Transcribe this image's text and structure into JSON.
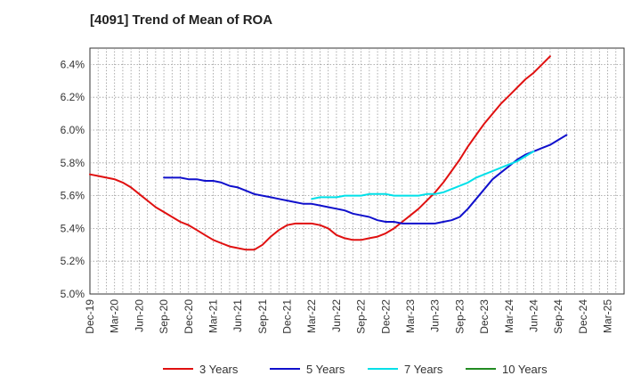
{
  "chart_data": {
    "type": "line",
    "title": "[4091]  Trend of Mean of ROA",
    "xlabel": "",
    "ylabel": "",
    "grid": true,
    "legend_position": "bottom",
    "ylim": [
      5.0,
      6.5
    ],
    "yticks": [
      5.0,
      5.2,
      5.4,
      5.6,
      5.8,
      6.0,
      6.2,
      6.4
    ],
    "ytick_labels": [
      "5.0%",
      "5.2%",
      "5.4%",
      "5.6%",
      "5.8%",
      "6.0%",
      "6.2%",
      "6.4%"
    ],
    "x_tick_labels": [
      "Dec-19",
      "Mar-20",
      "Jun-20",
      "Sep-20",
      "Dec-20",
      "Mar-21",
      "Jun-21",
      "Sep-21",
      "Dec-21",
      "Mar-22",
      "Jun-22",
      "Sep-22",
      "Dec-22",
      "Mar-23",
      "Jun-23",
      "Sep-23",
      "Dec-23",
      "Mar-24",
      "Jun-24",
      "Sep-24",
      "Dec-24",
      "Mar-25"
    ],
    "x_months": [
      0,
      1,
      2,
      3,
      4,
      5,
      6,
      7,
      8,
      9,
      10,
      11,
      12,
      13,
      14,
      15,
      16,
      17,
      18,
      19,
      20,
      21,
      22,
      23,
      24,
      25,
      26,
      27,
      28,
      29,
      30,
      31,
      32,
      33,
      34,
      35,
      36,
      37,
      38,
      39,
      40,
      41,
      42,
      43,
      44,
      45,
      46,
      47,
      48,
      49,
      50,
      51,
      52,
      53,
      54,
      55,
      56,
      57,
      58,
      59,
      60,
      61,
      62,
      63,
      64,
      65
    ],
    "series": [
      {
        "name": "3 Years",
        "color": "#e01010",
        "start_month": 0,
        "values": [
          5.73,
          5.72,
          5.71,
          5.7,
          5.68,
          5.65,
          5.61,
          5.57,
          5.53,
          5.5,
          5.47,
          5.44,
          5.42,
          5.39,
          5.36,
          5.33,
          5.31,
          5.29,
          5.28,
          5.27,
          5.27,
          5.3,
          5.35,
          5.39,
          5.42,
          5.43,
          5.43,
          5.43,
          5.42,
          5.4,
          5.36,
          5.34,
          5.33,
          5.33,
          5.34,
          5.35,
          5.37,
          5.4,
          5.44,
          5.48,
          5.52,
          5.57,
          5.62,
          5.68,
          5.75,
          5.82,
          5.9,
          5.97,
          6.04,
          6.1,
          6.16,
          6.21,
          6.26,
          6.31,
          6.35,
          6.4,
          6.45
        ]
      },
      {
        "name": "5 Years",
        "color": "#1010cc",
        "start_month": 9,
        "values": [
          5.71,
          5.71,
          5.71,
          5.7,
          5.7,
          5.69,
          5.69,
          5.68,
          5.66,
          5.65,
          5.63,
          5.61,
          5.6,
          5.59,
          5.58,
          5.57,
          5.56,
          5.55,
          5.55,
          5.54,
          5.53,
          5.52,
          5.51,
          5.49,
          5.48,
          5.47,
          5.45,
          5.44,
          5.44,
          5.43,
          5.43,
          5.43,
          5.43,
          5.43,
          5.44,
          5.45,
          5.47,
          5.52,
          5.58,
          5.64,
          5.7,
          5.74,
          5.78,
          5.82,
          5.85,
          5.87,
          5.89,
          5.91,
          5.94,
          5.97
        ]
      },
      {
        "name": "7 Years",
        "color": "#00e0e8",
        "start_month": 27,
        "values": [
          5.58,
          5.59,
          5.59,
          5.59,
          5.6,
          5.6,
          5.6,
          5.61,
          5.61,
          5.61,
          5.6,
          5.6,
          5.6,
          5.6,
          5.61,
          5.61,
          5.62,
          5.64,
          5.66,
          5.68,
          5.71,
          5.73,
          5.75,
          5.77,
          5.79,
          5.81,
          5.84,
          5.87
        ]
      },
      {
        "name": "10 Years",
        "color": "#228b22",
        "start_month": 0,
        "values": []
      }
    ]
  }
}
